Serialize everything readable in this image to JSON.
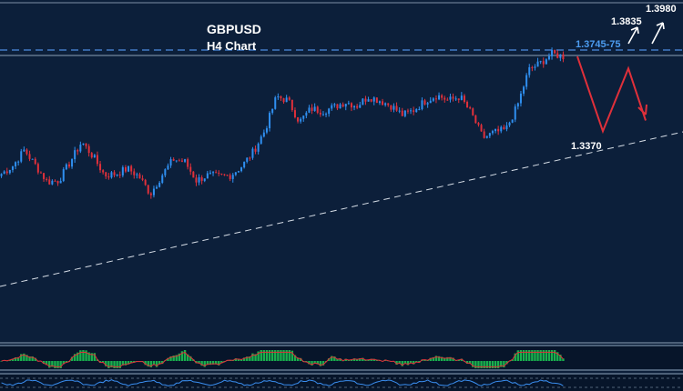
{
  "chart_data": {
    "type": "candlestick",
    "title": "GBPUSD",
    "subtitle": "H4 Chart",
    "levels": {
      "resistance_zone": "1.3745-75",
      "support": "1.3370",
      "target_1": "1.3835",
      "target_2": "1.3980"
    },
    "trend": {
      "close_path": [
        1.3305,
        1.3335,
        1.3395,
        1.3335,
        1.3275,
        1.328,
        1.335,
        1.3425,
        1.337,
        1.33,
        1.3305,
        1.3325,
        1.3295,
        1.323,
        1.33,
        1.336,
        1.335,
        1.328,
        1.33,
        1.3295,
        1.33,
        1.3335,
        1.339,
        1.347,
        1.3595,
        1.358,
        1.35,
        1.355,
        1.354,
        1.3555,
        1.3575,
        1.356,
        1.3595,
        1.358,
        1.356,
        1.3525,
        1.3545,
        1.358,
        1.36,
        1.358,
        1.3595,
        1.353,
        1.344,
        1.346,
        1.347,
        1.356,
        1.3695,
        1.372,
        1.3755,
        1.3745
      ]
    },
    "projection": {
      "path": [
        1.3745,
        1.3465,
        1.37,
        1.3505
      ]
    },
    "colors": {
      "background": "#0c1f3a",
      "bull": "#2f8ff0",
      "bear": "#e0303a",
      "projection": "#e0303a",
      "level_line": "#4c8ce0",
      "trendline": "#d6dde6",
      "histogram": "#19b04d"
    }
  }
}
